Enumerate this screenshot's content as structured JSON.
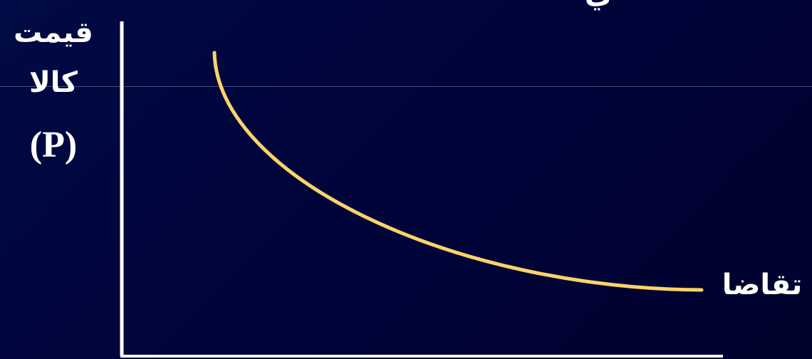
{
  "top_partial_text": "ي",
  "y_axis_label": {
    "line1": "قيمت",
    "line2": "كالا",
    "line3": "(P)"
  },
  "curve_label": "تقاضا",
  "colors": {
    "background": "#000338",
    "axis": "#ffffff",
    "curve": "#ffd36b",
    "guide_line": "#c8c8e6"
  }
}
